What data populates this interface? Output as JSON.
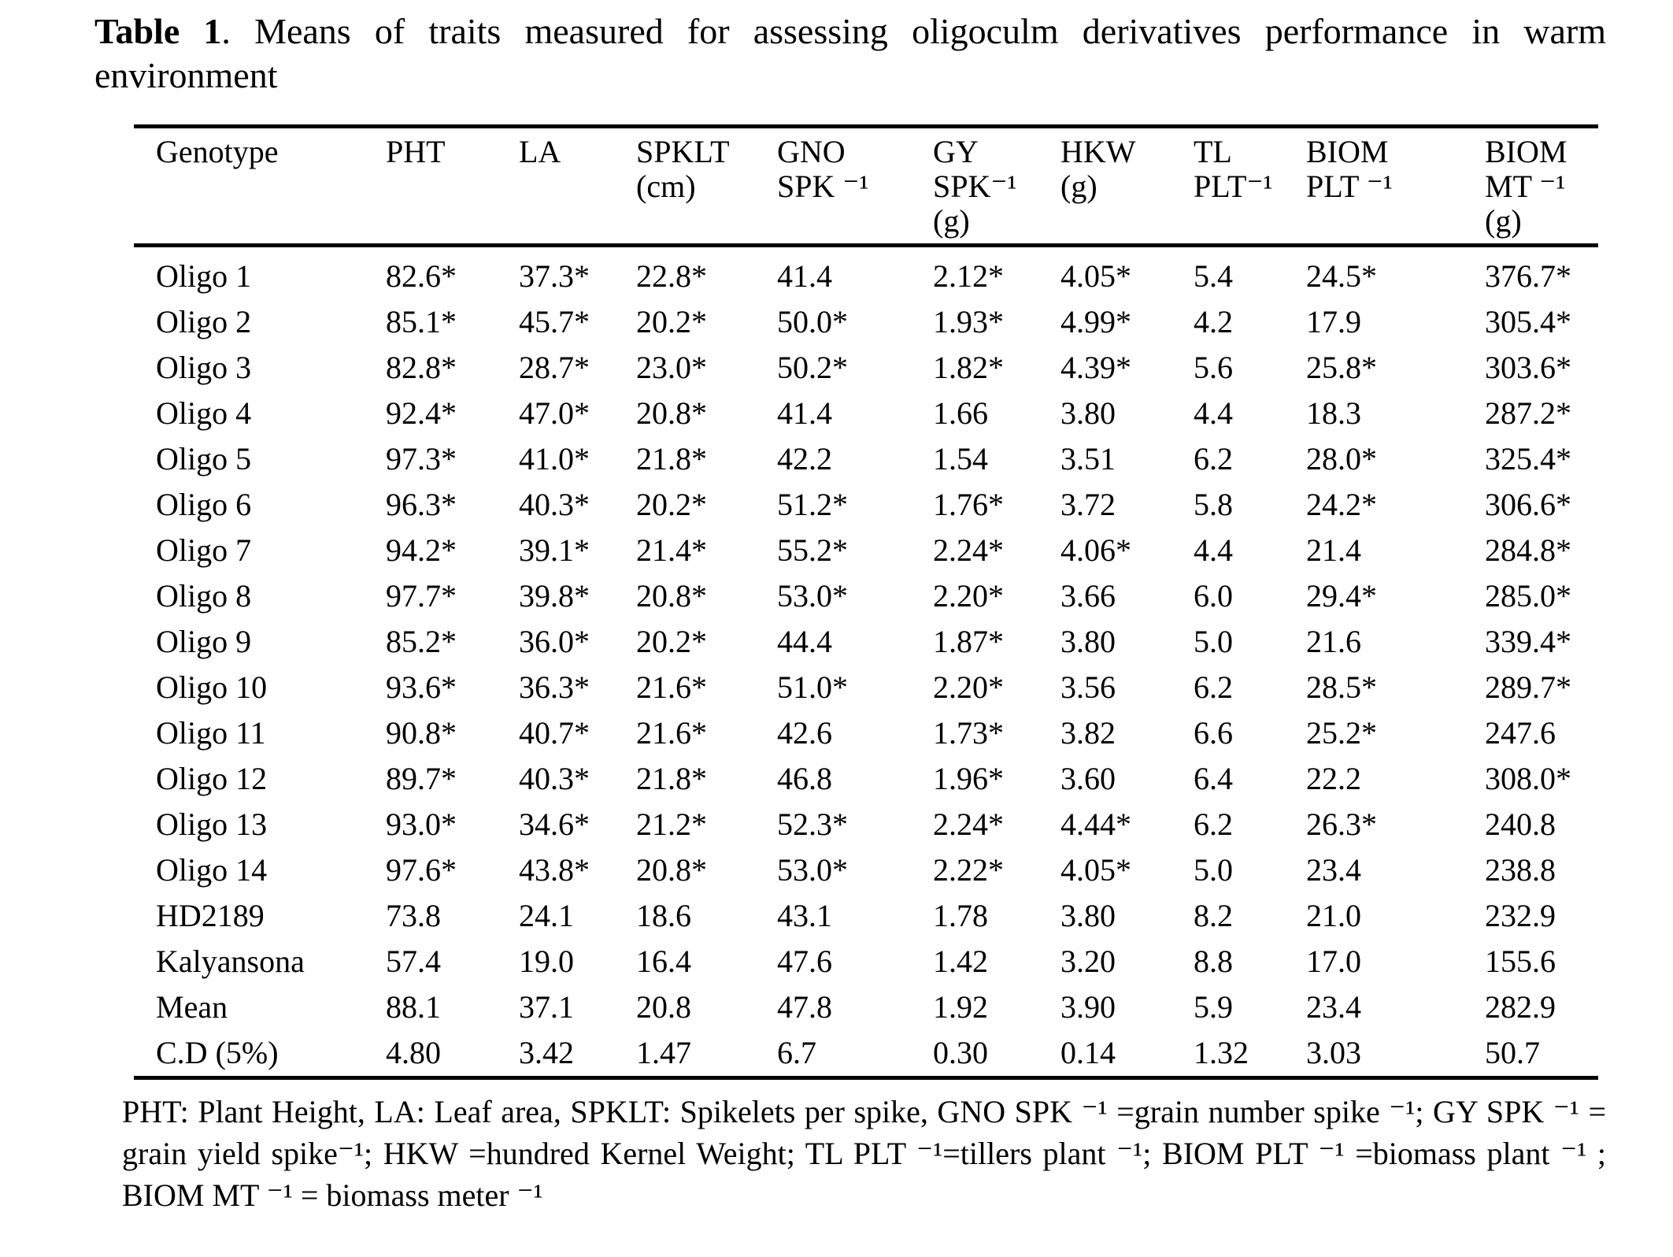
{
  "title": {
    "bold": "Table 1",
    "rest": ". Means of traits measured for assessing oligoculm derivatives performance in warm environment"
  },
  "table": {
    "columns": [
      {
        "key": "genotype",
        "text": "Genotype"
      },
      {
        "key": "pht",
        "text": "PHT"
      },
      {
        "key": "la",
        "text": "LA"
      },
      {
        "key": "spklt",
        "text": "SPKLT\n(cm)"
      },
      {
        "key": "gno-spk",
        "text": "GNO\nSPK ⁻¹"
      },
      {
        "key": "gy-spk",
        "text": "GY\nSPK⁻¹\n(g)"
      },
      {
        "key": "hkw",
        "text": "HKW\n(g)"
      },
      {
        "key": "tl-plt",
        "text": "TL\nPLT⁻¹"
      },
      {
        "key": "biom-plt",
        "text": "BIOM\nPLT ⁻¹"
      },
      {
        "key": "biom-mt",
        "text": "BIOM\nMT ⁻¹\n(g)"
      }
    ],
    "rows": [
      [
        "Oligo 1",
        "82.6*",
        "37.3*",
        "22.8*",
        "41.4",
        "2.12*",
        "4.05*",
        "5.4",
        "24.5*",
        "376.7*"
      ],
      [
        "Oligo 2",
        "85.1*",
        "45.7*",
        "20.2*",
        "50.0*",
        "1.93*",
        "4.99*",
        "4.2",
        "17.9",
        "305.4*"
      ],
      [
        "Oligo 3",
        "82.8*",
        "28.7*",
        "23.0*",
        "50.2*",
        "1.82*",
        "4.39*",
        "5.6",
        "25.8*",
        "303.6*"
      ],
      [
        "Oligo 4",
        "92.4*",
        "47.0*",
        "20.8*",
        "41.4",
        "1.66",
        "3.80",
        "4.4",
        "18.3",
        "287.2*"
      ],
      [
        "Oligo 5",
        "97.3*",
        "41.0*",
        "21.8*",
        "42.2",
        "1.54",
        "3.51",
        "6.2",
        "28.0*",
        "325.4*"
      ],
      [
        "Oligo 6",
        "96.3*",
        "40.3*",
        "20.2*",
        "51.2*",
        "1.76*",
        "3.72",
        "5.8",
        "24.2*",
        "306.6*"
      ],
      [
        "Oligo 7",
        "94.2*",
        "39.1*",
        "21.4*",
        "55.2*",
        "2.24*",
        "4.06*",
        "4.4",
        "21.4",
        "284.8*"
      ],
      [
        "Oligo 8",
        "97.7*",
        "39.8*",
        "20.8*",
        "53.0*",
        "2.20*",
        "3.66",
        "6.0",
        "29.4*",
        "285.0*"
      ],
      [
        "Oligo 9",
        "85.2*",
        "36.0*",
        "20.2*",
        "44.4",
        "1.87*",
        "3.80",
        "5.0",
        "21.6",
        "339.4*"
      ],
      [
        "Oligo 10",
        "93.6*",
        "36.3*",
        "21.6*",
        "51.0*",
        "2.20*",
        "3.56",
        "6.2",
        "28.5*",
        "289.7*"
      ],
      [
        "Oligo 11",
        "90.8*",
        "40.7*",
        "21.6*",
        "42.6",
        "1.73*",
        "3.82",
        "6.6",
        "25.2*",
        "247.6"
      ],
      [
        "Oligo 12",
        "89.7*",
        "40.3*",
        "21.8*",
        "46.8",
        "1.96*",
        "3.60",
        "6.4",
        "22.2",
        "308.0*"
      ],
      [
        "Oligo 13",
        "93.0*",
        "34.6*",
        "21.2*",
        "52.3*",
        "2.24*",
        "4.44*",
        "6.2",
        "26.3*",
        "240.8"
      ],
      [
        "Oligo 14",
        "97.6*",
        "43.8*",
        "20.8*",
        "53.0*",
        "2.22*",
        "4.05*",
        "5.0",
        "23.4",
        "238.8"
      ],
      [
        "HD2189",
        "73.8",
        "24.1",
        "18.6",
        "43.1",
        "1.78",
        "3.80",
        "8.2",
        "21.0",
        "232.9"
      ],
      [
        "Kalyansona",
        "57.4",
        "19.0",
        "16.4",
        "47.6",
        "1.42",
        "3.20",
        "8.8",
        "17.0",
        "155.6"
      ],
      [
        "Mean",
        "88.1",
        "37.1",
        "20.8",
        "47.8",
        "1.92",
        "3.90",
        "5.9",
        "23.4",
        "282.9"
      ],
      [
        "C.D (5%)",
        "4.80",
        "3.42",
        "1.47",
        "6.7",
        "0.30",
        "0.14",
        "1.32",
        "3.03",
        "50.7"
      ]
    ]
  },
  "footnote": {
    "text": "PHT: Plant Height, LA: Leaf area, SPKLT: Spikelets per spike, GNO SPK ⁻¹ =grain number spike ⁻¹; GY SPK ⁻¹ = grain yield spike⁻¹; HKW =hundred Kernel Weight; TL PLT ⁻¹=tillers plant ⁻¹; BIOM PLT ⁻¹ =biomass plant ⁻¹ ; BIOM MT ⁻¹ = biomass meter ⁻¹"
  }
}
